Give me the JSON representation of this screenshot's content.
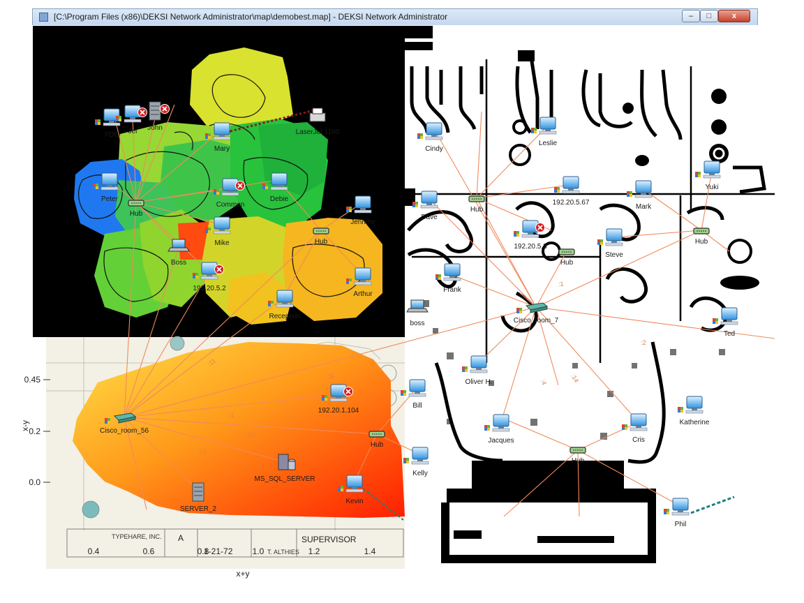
{
  "window": {
    "title": "[C:\\Program Files (x86)\\DEKSI Network Administrator\\map\\demobest.map] - DEKSI Network Administrator",
    "min_glyph": "–",
    "max_glyph": "□",
    "close_glyph": "x"
  },
  "colors": {
    "link": "#f08a5d",
    "dotted_link": "#8b1a1a",
    "teal_link": "#1f7f7f",
    "error": "#d42020",
    "hub": "#7fbf6f"
  },
  "chart_axes": {
    "y_label": "x-y",
    "x_label": "x+y",
    "y_ticks": [
      "0.45",
      "0.2",
      "0.0"
    ],
    "x_ticks": [
      "0.4",
      "0.6",
      "0.8",
      "1.0",
      "1.2",
      "1.4"
    ]
  },
  "blueprint_text": {
    "company": "TYPEHARE, INC.",
    "sheet": "A",
    "date": "1-21-72",
    "supervisor": "SUPERVISOR",
    "initials": "T. ALTHIES"
  },
  "devices": [
    {
      "label": "FDE",
      "icon": "computer-icon",
      "error": false
    },
    {
      "label": "Jei",
      "icon": "computer-icon",
      "error": true
    },
    {
      "label": "John",
      "icon": "server-icon",
      "error": true
    },
    {
      "label": "LaserJet 1100",
      "icon": "printer-icon",
      "error": false
    },
    {
      "label": "Mary",
      "icon": "computer-icon",
      "error": false
    },
    {
      "label": "Peter",
      "icon": "computer-icon",
      "error": false
    },
    {
      "label": "Hub",
      "icon": "hub-icon",
      "error": false
    },
    {
      "label": "Common",
      "icon": "computer-icon",
      "error": true
    },
    {
      "label": "Debie",
      "icon": "computer-icon",
      "error": false
    },
    {
      "label": "Jennifer",
      "icon": "computer-icon",
      "error": false
    },
    {
      "label": "Mike",
      "icon": "computer-icon",
      "error": false
    },
    {
      "label": "Hub",
      "icon": "hub-icon",
      "error": false
    },
    {
      "label": "Boss",
      "icon": "laptop-icon",
      "error": false
    },
    {
      "label": "192.20.5.2",
      "icon": "computer-icon",
      "error": true
    },
    {
      "label": "Arthur",
      "icon": "computer-icon",
      "error": false
    },
    {
      "label": "Reception",
      "icon": "computer-icon",
      "error": false
    },
    {
      "label": "Cisco_room_56",
      "icon": "router-icon",
      "error": false
    },
    {
      "label": "192.20.1.104",
      "icon": "computer-icon",
      "error": true
    },
    {
      "label": "Hub",
      "icon": "hub-icon",
      "error": false
    },
    {
      "label": "MS_SQL_SERVER",
      "icon": "database-icon",
      "error": false
    },
    {
      "label": "SERVER_2",
      "icon": "server-icon",
      "error": false
    },
    {
      "label": "Kevin",
      "icon": "computer-icon",
      "error": false
    },
    {
      "label": "Kelly",
      "icon": "computer-icon",
      "error": false
    },
    {
      "label": "Bill",
      "icon": "computer-icon",
      "error": false
    },
    {
      "label": "Cindy",
      "icon": "computer-icon",
      "error": false
    },
    {
      "label": "Leslie",
      "icon": "computer-icon",
      "error": false
    },
    {
      "label": "Hub",
      "icon": "hub-icon",
      "error": false
    },
    {
      "label": "192.20.5.67",
      "icon": "computer-icon",
      "error": false
    },
    {
      "label": "Dave",
      "icon": "computer-icon",
      "error": false
    },
    {
      "label": "192.20.5.3",
      "icon": "computer-icon",
      "error": true
    },
    {
      "label": "Hub",
      "icon": "hub-icon",
      "error": false
    },
    {
      "label": "Mark",
      "icon": "computer-icon",
      "error": false
    },
    {
      "label": "Yuki",
      "icon": "computer-icon",
      "error": false
    },
    {
      "label": "Hub",
      "icon": "hub-icon",
      "error": false
    },
    {
      "label": "Steve",
      "icon": "computer-icon",
      "error": false
    },
    {
      "label": "Frank",
      "icon": "computer-icon",
      "error": false
    },
    {
      "label": "boss",
      "icon": "laptop-icon",
      "error": false
    },
    {
      "label": "Cisco_room_7",
      "icon": "router-icon",
      "error": false
    },
    {
      "label": "Ted",
      "icon": "computer-icon",
      "error": false
    },
    {
      "label": "Oliver H.",
      "icon": "computer-icon",
      "error": false
    },
    {
      "label": "Katherine",
      "icon": "computer-icon",
      "error": false
    },
    {
      "label": "Jacques",
      "icon": "computer-icon",
      "error": false
    },
    {
      "label": "Cris",
      "icon": "computer-icon",
      "error": false
    },
    {
      "label": "Hub",
      "icon": "hub-icon",
      "error": false
    },
    {
      "label": "Phil",
      "icon": "computer-icon",
      "error": false
    }
  ],
  "link_rates": [
    ":11",
    ":9",
    ":1",
    ":16",
    ":28",
    ":14",
    ":4",
    ":2",
    ":1"
  ]
}
